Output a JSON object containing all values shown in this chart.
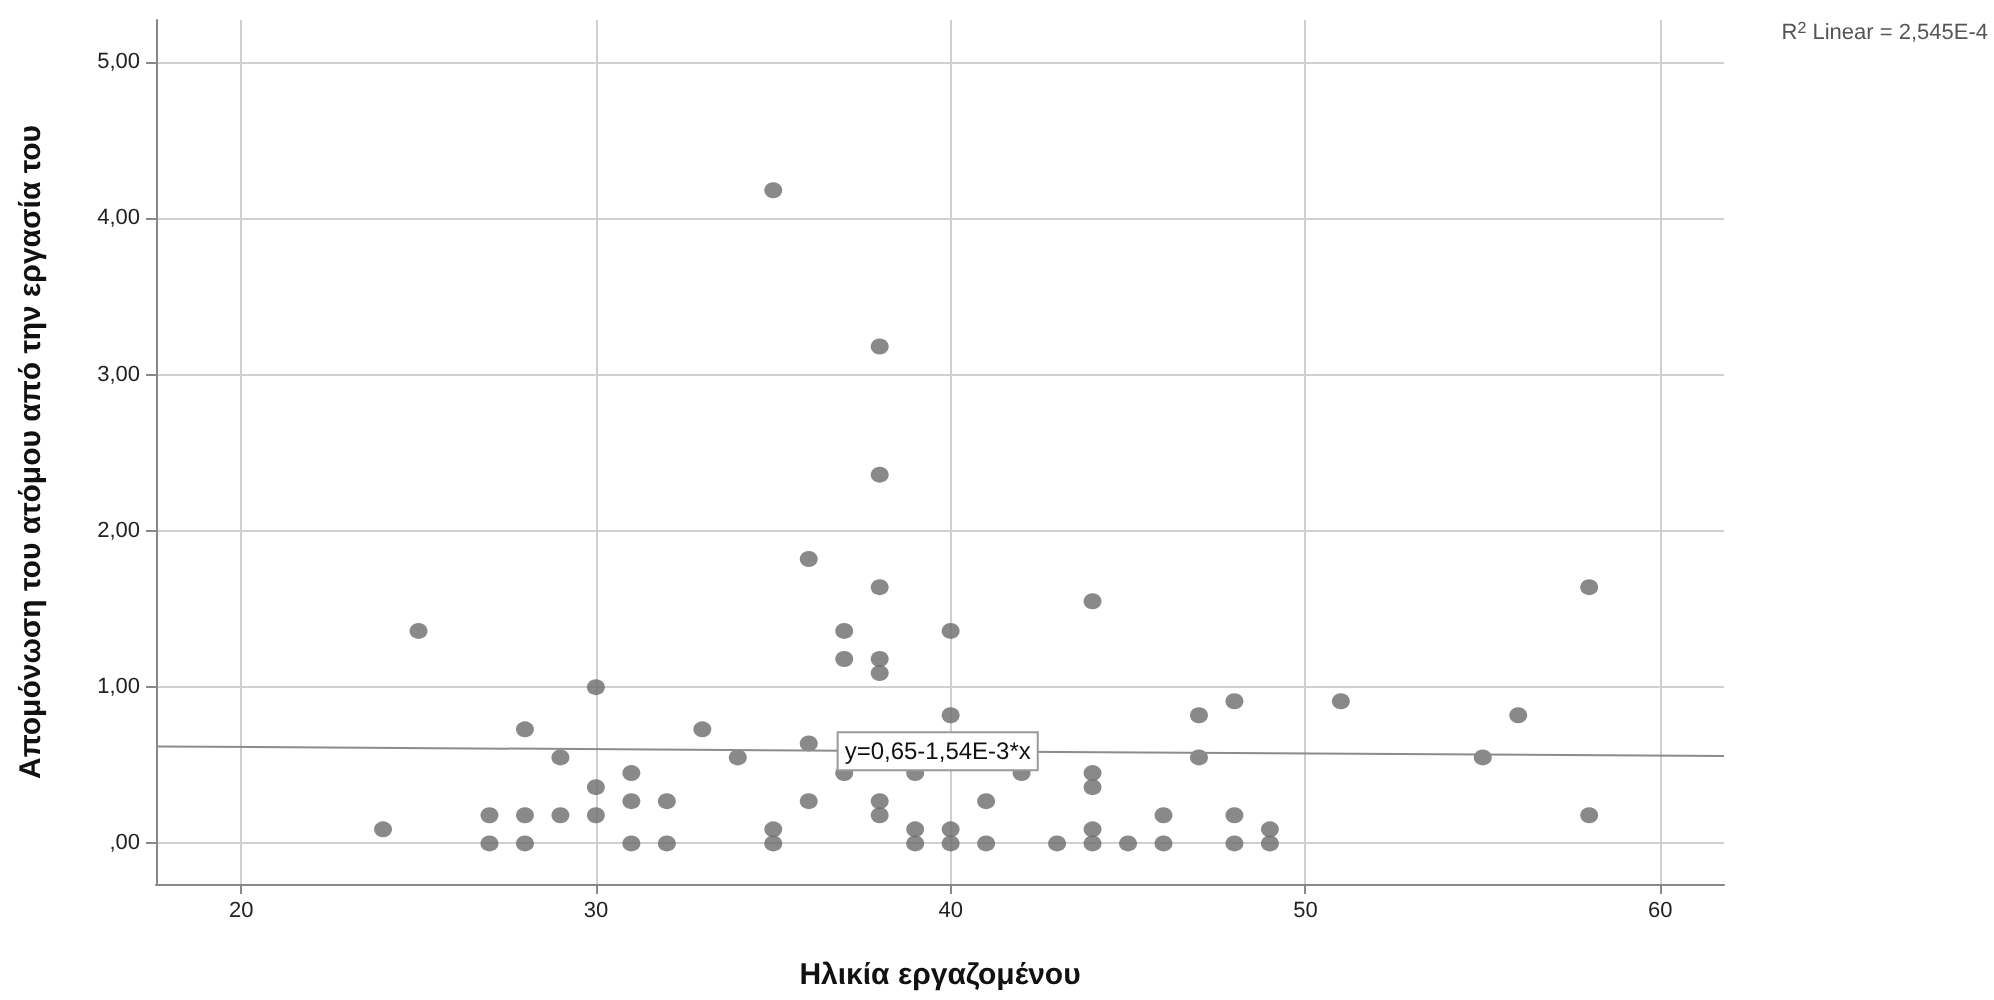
{
  "chart_data": {
    "type": "scatter",
    "xlabel": "Ηλικία εργαζομένου",
    "ylabel": "Απομόνωση του ατόμου από την εργασία του",
    "xlim": [
      17.6,
      61.8
    ],
    "xticks": [
      20,
      30,
      40,
      50,
      60
    ],
    "ylim": [
      -0.26,
      5.27
    ],
    "yticks": [
      {
        "value": 0,
        "label": ",00"
      },
      {
        "value": 1,
        "label": "1,00"
      },
      {
        "value": 2,
        "label": "2,00"
      },
      {
        "value": 3,
        "label": "3,00"
      },
      {
        "value": 4,
        "label": "4,00"
      },
      {
        "value": 5,
        "label": "5,00"
      }
    ],
    "grid": true,
    "marker": "circle",
    "series": [
      {
        "color": "#6b6b6b",
        "x": [
          24,
          25,
          27,
          27,
          28,
          28,
          28,
          29,
          29,
          30,
          30,
          30,
          31,
          31,
          31,
          32,
          32,
          33,
          34,
          35,
          35,
          35,
          36,
          36,
          36,
          37,
          37,
          37,
          38,
          38,
          38,
          38,
          38,
          38,
          38,
          39,
          39,
          39,
          40,
          40,
          40,
          40,
          41,
          41,
          42,
          43,
          44,
          44,
          44,
          44,
          44,
          45,
          46,
          46,
          47,
          47,
          48,
          48,
          48,
          49,
          49,
          51,
          55,
          56,
          58,
          58
        ],
        "values": [
          0.09,
          1.36,
          0.18,
          0,
          0.73,
          0.18,
          0,
          0.55,
          0.18,
          1.0,
          0.36,
          0.18,
          0.45,
          0.27,
          0,
          0.27,
          0,
          0.73,
          0.55,
          4.18,
          0.09,
          0,
          1.82,
          0.64,
          0.27,
          1.36,
          1.18,
          0.45,
          3.18,
          2.36,
          1.64,
          1.18,
          1.09,
          0.27,
          0.18,
          0.45,
          0.09,
          0,
          1.36,
          0.82,
          0.09,
          0,
          0.27,
          0,
          0.45,
          0,
          1.55,
          0.45,
          0.36,
          0.09,
          0,
          0,
          0.18,
          0,
          0.82,
          0.55,
          0.91,
          0.18,
          0,
          0.09,
          0,
          0.91,
          0.55,
          0.82,
          1.64,
          0.18
        ]
      },
      {
        "type": "line",
        "color": "#8c8c8c",
        "marker": "none",
        "x": [
          17.6,
          61.8
        ],
        "values": [
          0.62,
          0.56
        ]
      }
    ],
    "annotations": [
      {
        "text": "y=0,65-1,54E-3*x",
        "x": 40,
        "y": 0.59
      },
      "R$^{2}$ Linear = 2,545E-4"
    ]
  }
}
